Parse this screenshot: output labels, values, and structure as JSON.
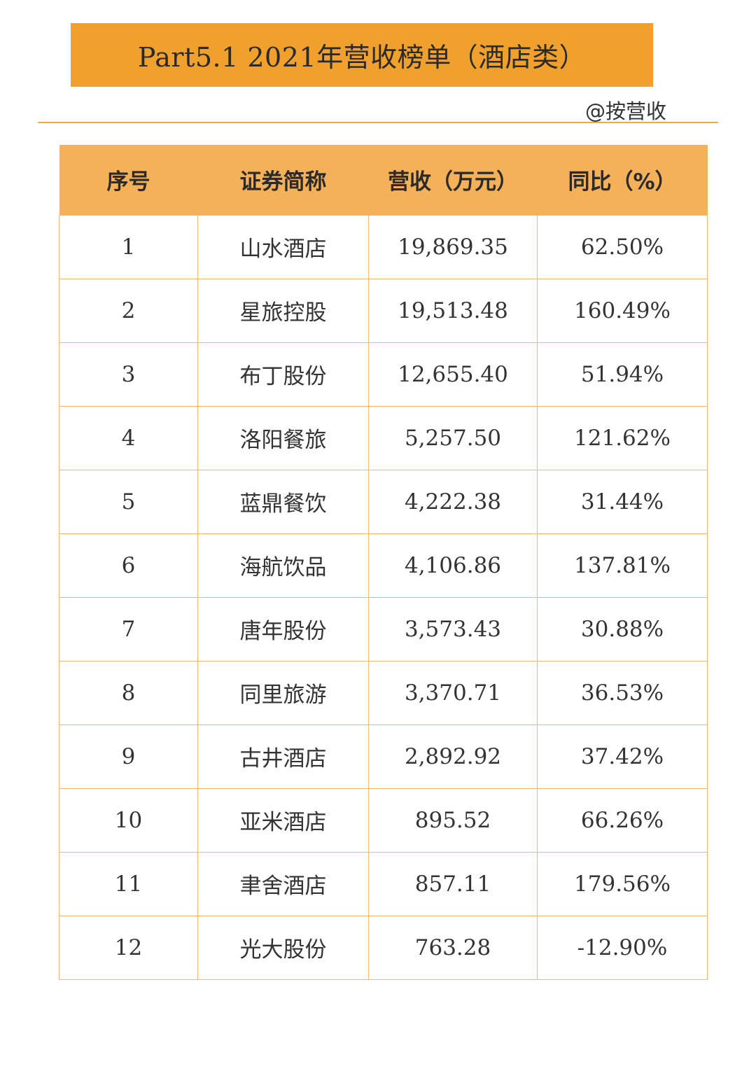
{
  "header": {
    "title": "Part5.1 2021年营收榜单（酒店类）",
    "source_tag": "@按营收"
  },
  "theme": {
    "banner_color": "#f0a02c",
    "header_row_color": "#f4b15a",
    "border_color": "#f0b877"
  },
  "table": {
    "columns": [
      "序号",
      "证券简称",
      "营收（万元）",
      "同比（%）"
    ],
    "rows": [
      {
        "rank": "1",
        "name": "山水酒店",
        "revenue": "19,869.35",
        "yoy": "62.50%"
      },
      {
        "rank": "2",
        "name": "星旅控股",
        "revenue": "19,513.48",
        "yoy": "160.49%"
      },
      {
        "rank": "3",
        "name": "布丁股份",
        "revenue": "12,655.40",
        "yoy": "51.94%"
      },
      {
        "rank": "4",
        "name": "洛阳餐旅",
        "revenue": "5,257.50",
        "yoy": "121.62%"
      },
      {
        "rank": "5",
        "name": "蓝鼎餐饮",
        "revenue": "4,222.38",
        "yoy": "31.44%"
      },
      {
        "rank": "6",
        "name": "海航饮品",
        "revenue": "4,106.86",
        "yoy": "137.81%"
      },
      {
        "rank": "7",
        "name": "唐年股份",
        "revenue": "3,573.43",
        "yoy": "30.88%"
      },
      {
        "rank": "8",
        "name": "同里旅游",
        "revenue": "3,370.71",
        "yoy": "36.53%"
      },
      {
        "rank": "9",
        "name": "古井酒店",
        "revenue": "2,892.92",
        "yoy": "37.42%"
      },
      {
        "rank": "10",
        "name": "亚米酒店",
        "revenue": "895.52",
        "yoy": "66.26%"
      },
      {
        "rank": "11",
        "name": "聿舍酒店",
        "revenue": "857.11",
        "yoy": "179.56%"
      },
      {
        "rank": "12",
        "name": "光大股份",
        "revenue": "763.28",
        "yoy": "-12.90%"
      }
    ]
  }
}
